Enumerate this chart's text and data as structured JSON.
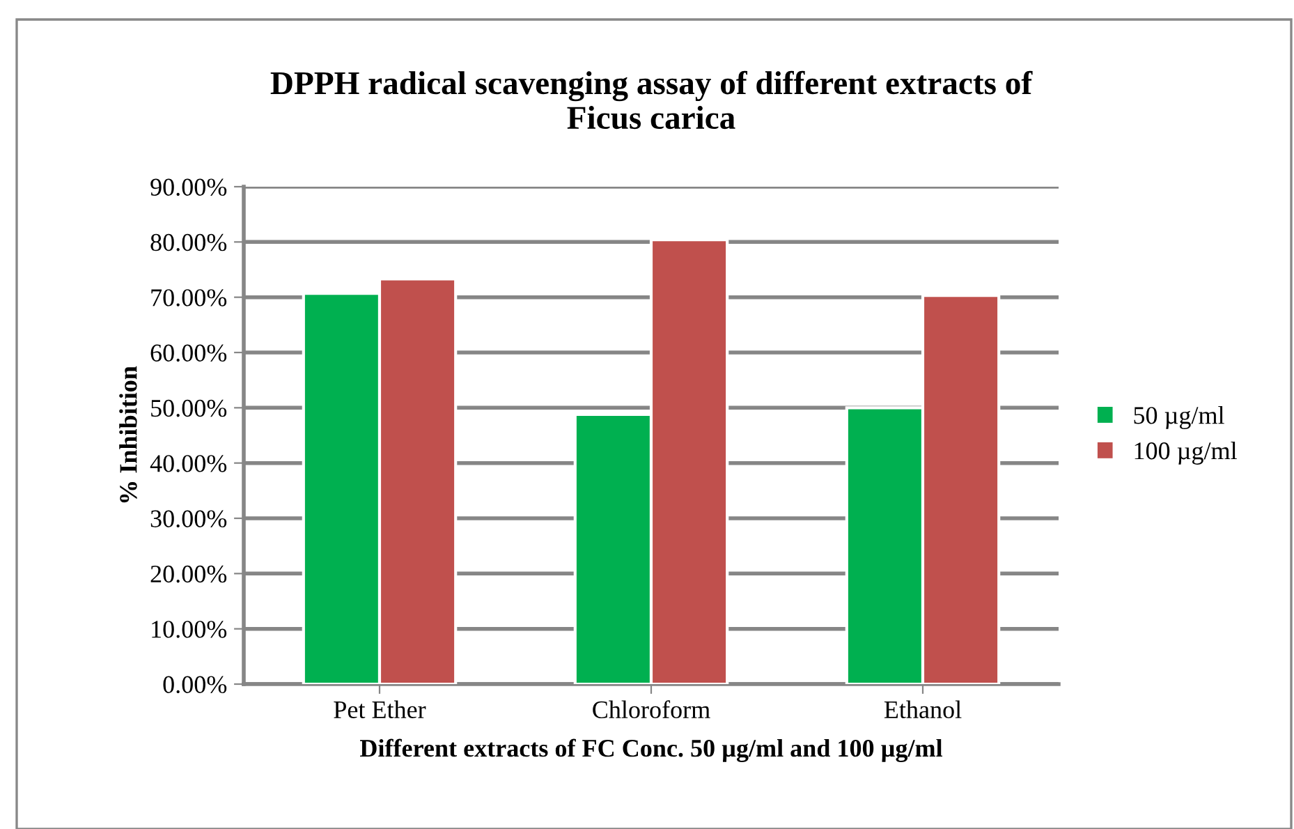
{
  "chart_data": {
    "type": "bar",
    "title": "DPPH radical scavenging assay of different extracts of\nFicus carica",
    "xlabel": "Different extracts of FC Conc. 50 µg/ml and 100 µg/ml",
    "ylabel": "% Inhibition",
    "categories": [
      "Pet Ether",
      "Chloroform",
      "Ethanol"
    ],
    "series": [
      {
        "name": "50 µg/ml",
        "color": "#00b050",
        "values": [
          70.7,
          48.8,
          50.0
        ]
      },
      {
        "name": "100 µg/ml",
        "color": "#c0504d",
        "values": [
          73.3,
          80.4,
          70.3
        ]
      }
    ],
    "ylim": [
      0,
      90
    ],
    "yticks": [
      {
        "value": 0,
        "label": "0.00%"
      },
      {
        "value": 10,
        "label": "10.00%"
      },
      {
        "value": 20,
        "label": "20.00%"
      },
      {
        "value": 30,
        "label": "30.00%"
      },
      {
        "value": 40,
        "label": "40.00%"
      },
      {
        "value": 50,
        "label": "50.00%"
      },
      {
        "value": 60,
        "label": "60.00%"
      },
      {
        "value": 70,
        "label": "70.00%"
      },
      {
        "value": 80,
        "label": "80.00%"
      },
      {
        "value": 90,
        "label": "90.00%"
      }
    ],
    "grid": "y",
    "legend": "right"
  }
}
